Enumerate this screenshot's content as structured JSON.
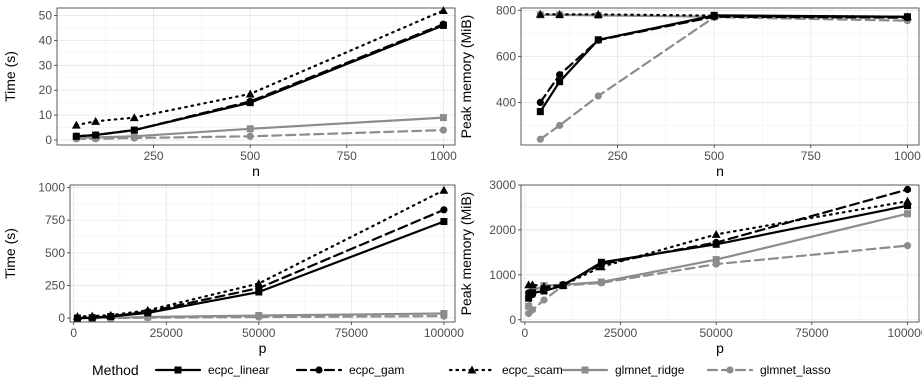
{
  "chart_data": [
    {
      "type": "line",
      "xlabel": "n",
      "ylabel": "Time (s)",
      "xlim": [
        0,
        1030
      ],
      "ylim": [
        -2,
        53
      ],
      "xticks": [
        250,
        500,
        750,
        1000
      ],
      "yticks": [
        0,
        10,
        20,
        30,
        40,
        50
      ],
      "x": [
        50,
        100,
        200,
        500,
        1000
      ],
      "series": [
        {
          "name": "ecpc_linear",
          "values": [
            1.5,
            2,
            4,
            15,
            46
          ]
        },
        {
          "name": "ecpc_gam",
          "values": [
            1.5,
            2,
            4,
            15.5,
            46.5
          ]
        },
        {
          "name": "ecpc_scam",
          "values": [
            6,
            7.5,
            9,
            18.5,
            52
          ]
        },
        {
          "name": "glmnet_ridge",
          "values": [
            1,
            1,
            1.5,
            4.5,
            9
          ]
        },
        {
          "name": "glmnet_lasso",
          "values": [
            0.5,
            0.5,
            0.8,
            1.5,
            4
          ]
        }
      ]
    },
    {
      "type": "line",
      "xlabel": "n",
      "ylabel": "Peak memory (MiB)",
      "xlim": [
        0,
        1030
      ],
      "ylim": [
        215,
        810
      ],
      "xticks": [
        250,
        500,
        750,
        1000
      ],
      "yticks": [
        400,
        600,
        800
      ],
      "x": [
        50,
        100,
        200,
        500,
        1000
      ],
      "series": [
        {
          "name": "ecpc_linear",
          "values": [
            360,
            490,
            672,
            778,
            772
          ]
        },
        {
          "name": "ecpc_gam",
          "values": [
            400,
            520,
            670,
            772,
            768
          ]
        },
        {
          "name": "ecpc_scam",
          "values": [
            783,
            782,
            782,
            777,
            772
          ]
        },
        {
          "name": "glmnet_ridge",
          "values": [
            780,
            780,
            778,
            772,
            770
          ]
        },
        {
          "name": "glmnet_lasso",
          "values": [
            240,
            300,
            428,
            770,
            755
          ]
        }
      ]
    },
    {
      "type": "line",
      "xlabel": "p",
      "ylabel": "Time (s)",
      "xlim": [
        -1000,
        103000
      ],
      "ylim": [
        -30,
        1020
      ],
      "xticks": [
        0,
        25000,
        50000,
        75000,
        100000
      ],
      "yticks": [
        0,
        250,
        500,
        750,
        1000
      ],
      "x": [
        1000,
        5000,
        10000,
        20000,
        50000,
        100000
      ],
      "series": [
        {
          "name": "ecpc_linear",
          "values": [
            0,
            3,
            12,
            40,
            200,
            740
          ]
        },
        {
          "name": "ecpc_gam",
          "values": [
            0,
            4,
            14,
            48,
            230,
            830
          ]
        },
        {
          "name": "ecpc_scam",
          "values": [
            12,
            16,
            22,
            60,
            265,
            980
          ]
        },
        {
          "name": "glmnet_ridge",
          "values": [
            0,
            1,
            2,
            8,
            20,
            35
          ]
        },
        {
          "name": "glmnet_lasso",
          "values": [
            0,
            0,
            1,
            3,
            8,
            15
          ]
        }
      ]
    },
    {
      "type": "line",
      "xlabel": "p",
      "ylabel": "Peak memory (MiB)",
      "xlim": [
        -1000,
        103000
      ],
      "ylim": [
        -50,
        3000
      ],
      "xticks": [
        0,
        25000,
        50000,
        75000,
        100000
      ],
      "yticks": [
        0,
        1000,
        2000,
        3000
      ],
      "x": [
        1000,
        2000,
        5000,
        10000,
        20000,
        50000,
        100000
      ],
      "series": [
        {
          "name": "ecpc_linear",
          "values": [
            480,
            600,
            640,
            760,
            1280,
            1680,
            2540
          ]
        },
        {
          "name": "ecpc_gam",
          "values": [
            600,
            560,
            700,
            780,
            1240,
            1720,
            2900
          ]
        },
        {
          "name": "ecpc_scam",
          "values": [
            780,
            780,
            740,
            770,
            1180,
            1900,
            2640
          ]
        },
        {
          "name": "glmnet_ridge",
          "values": [
            300,
            640,
            760,
            780,
            840,
            1340,
            2360
          ]
        },
        {
          "name": "glmnet_lasso",
          "values": [
            140,
            220,
            440,
            760,
            820,
            1240,
            1650
          ]
        }
      ]
    }
  ],
  "legend": {
    "title": "Method",
    "items": [
      "ecpc_linear",
      "ecpc_gam",
      "ecpc_scam",
      "glmnet_ridge",
      "glmnet_lasso"
    ]
  },
  "styles": {
    "ecpc_linear": {
      "color": "#000000",
      "dash": "none",
      "marker": "square"
    },
    "ecpc_gam": {
      "color": "#000000",
      "dash": "9 5",
      "marker": "circle"
    },
    "ecpc_scam": {
      "color": "#000000",
      "dash": "1.5 5",
      "marker": "triangle"
    },
    "glmnet_ridge": {
      "color": "#8c8c8c",
      "dash": "none",
      "marker": "square"
    },
    "glmnet_lasso": {
      "color": "#8c8c8c",
      "dash": "9 5",
      "marker": "circle"
    }
  }
}
